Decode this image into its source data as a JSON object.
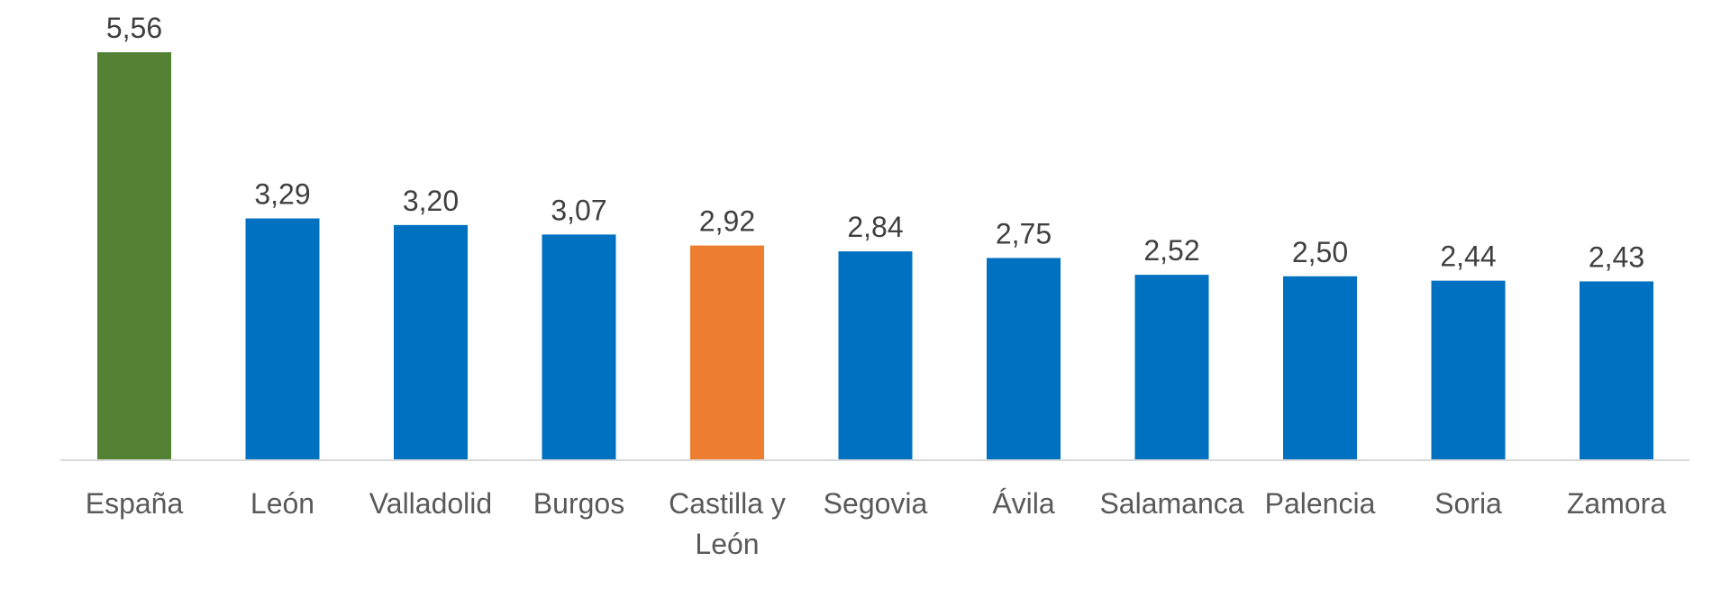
{
  "chart_data": {
    "type": "bar",
    "title": "",
    "xlabel": "",
    "ylabel": "",
    "categories": [
      "España",
      "León",
      "Valladolid",
      "Burgos",
      "Castilla y León",
      "Segovia",
      "Ávila",
      "Salamanca",
      "Palencia",
      "Soria",
      "Zamora"
    ],
    "category_lines": [
      [
        "España"
      ],
      [
        "León"
      ],
      [
        "Valladolid"
      ],
      [
        "Burgos"
      ],
      [
        "Castilla y",
        "León"
      ],
      [
        "Segovia"
      ],
      [
        "Ávila"
      ],
      [
        "Salamanca"
      ],
      [
        "Palencia"
      ],
      [
        "Soria"
      ],
      [
        "Zamora"
      ]
    ],
    "values": [
      5.56,
      3.29,
      3.2,
      3.07,
      2.92,
      2.84,
      2.75,
      2.52,
      2.5,
      2.44,
      2.43
    ],
    "value_labels": [
      "5,56",
      "3,29",
      "3,20",
      "3,07",
      "2,92",
      "2,84",
      "2,75",
      "2,52",
      "2,50",
      "2,44",
      "2,43"
    ],
    "bar_colors": [
      "#548235",
      "#0070C0",
      "#0070C0",
      "#0070C0",
      "#ED7D31",
      "#0070C0",
      "#0070C0",
      "#0070C0",
      "#0070C0",
      "#0070C0",
      "#0070C0"
    ],
    "ylim": [
      0,
      5.56
    ],
    "grid": false,
    "legend": "none",
    "axis_line_color": "#D9D9D9"
  }
}
